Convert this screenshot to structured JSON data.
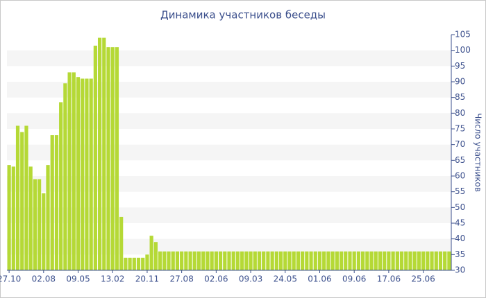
{
  "chart_data": {
    "type": "bar",
    "title": "Динамика участников беседы",
    "y_axis_label": "Число участников",
    "categories": [
      "27.10",
      null,
      null,
      null,
      null,
      null,
      null,
      null,
      "02.08",
      null,
      null,
      null,
      null,
      null,
      null,
      null,
      "09.05",
      null,
      null,
      null,
      null,
      null,
      null,
      null,
      "13.02",
      null,
      null,
      null,
      null,
      null,
      null,
      null,
      "20.11",
      null,
      null,
      null,
      null,
      null,
      null,
      null,
      "27.08",
      null,
      null,
      null,
      null,
      null,
      null,
      null,
      "02.06",
      null,
      null,
      null,
      null,
      null,
      null,
      null,
      "09.03",
      null,
      null,
      null,
      null,
      null,
      null,
      null,
      "24.05",
      null,
      null,
      null,
      null,
      null,
      null,
      null,
      "01.06",
      null,
      null,
      null,
      null,
      null,
      null,
      null,
      "09.06",
      null,
      null,
      null,
      null,
      null,
      null,
      null,
      "17.06",
      null,
      null,
      null,
      null,
      null,
      null,
      null,
      "25.06",
      null,
      null,
      null,
      null,
      null,
      null
    ],
    "values": [
      63.5,
      63,
      76,
      74,
      76,
      63,
      59,
      59,
      54.5,
      63.5,
      73,
      73,
      83.5,
      89.5,
      93,
      93,
      91.5,
      91,
      91,
      91,
      101.5,
      104,
      104,
      101,
      101,
      101,
      47,
      34,
      34,
      34,
      34,
      34,
      35,
      41,
      39,
      36,
      36,
      36,
      36,
      36,
      36,
      36,
      36,
      36,
      36,
      36,
      36,
      36,
      36,
      36,
      36,
      36,
      36,
      36,
      36,
      36,
      36,
      36,
      36,
      36,
      36,
      36,
      36,
      36,
      36,
      36,
      36,
      36,
      36,
      36,
      36,
      36,
      36,
      36,
      36,
      36,
      36,
      36,
      36,
      36,
      36,
      36,
      36,
      36,
      36,
      36,
      36,
      36,
      36,
      36,
      36,
      36,
      36,
      36,
      36,
      36,
      36,
      36,
      36,
      36,
      36,
      36,
      36
    ],
    "color": "#b5d936",
    "ylim": [
      30,
      105
    ],
    "yticks": [
      30,
      35,
      40,
      45,
      50,
      55,
      60,
      65,
      70,
      75,
      80,
      85,
      90,
      95,
      100,
      105
    ],
    "y_axis_side": "right",
    "grid": "bands"
  }
}
